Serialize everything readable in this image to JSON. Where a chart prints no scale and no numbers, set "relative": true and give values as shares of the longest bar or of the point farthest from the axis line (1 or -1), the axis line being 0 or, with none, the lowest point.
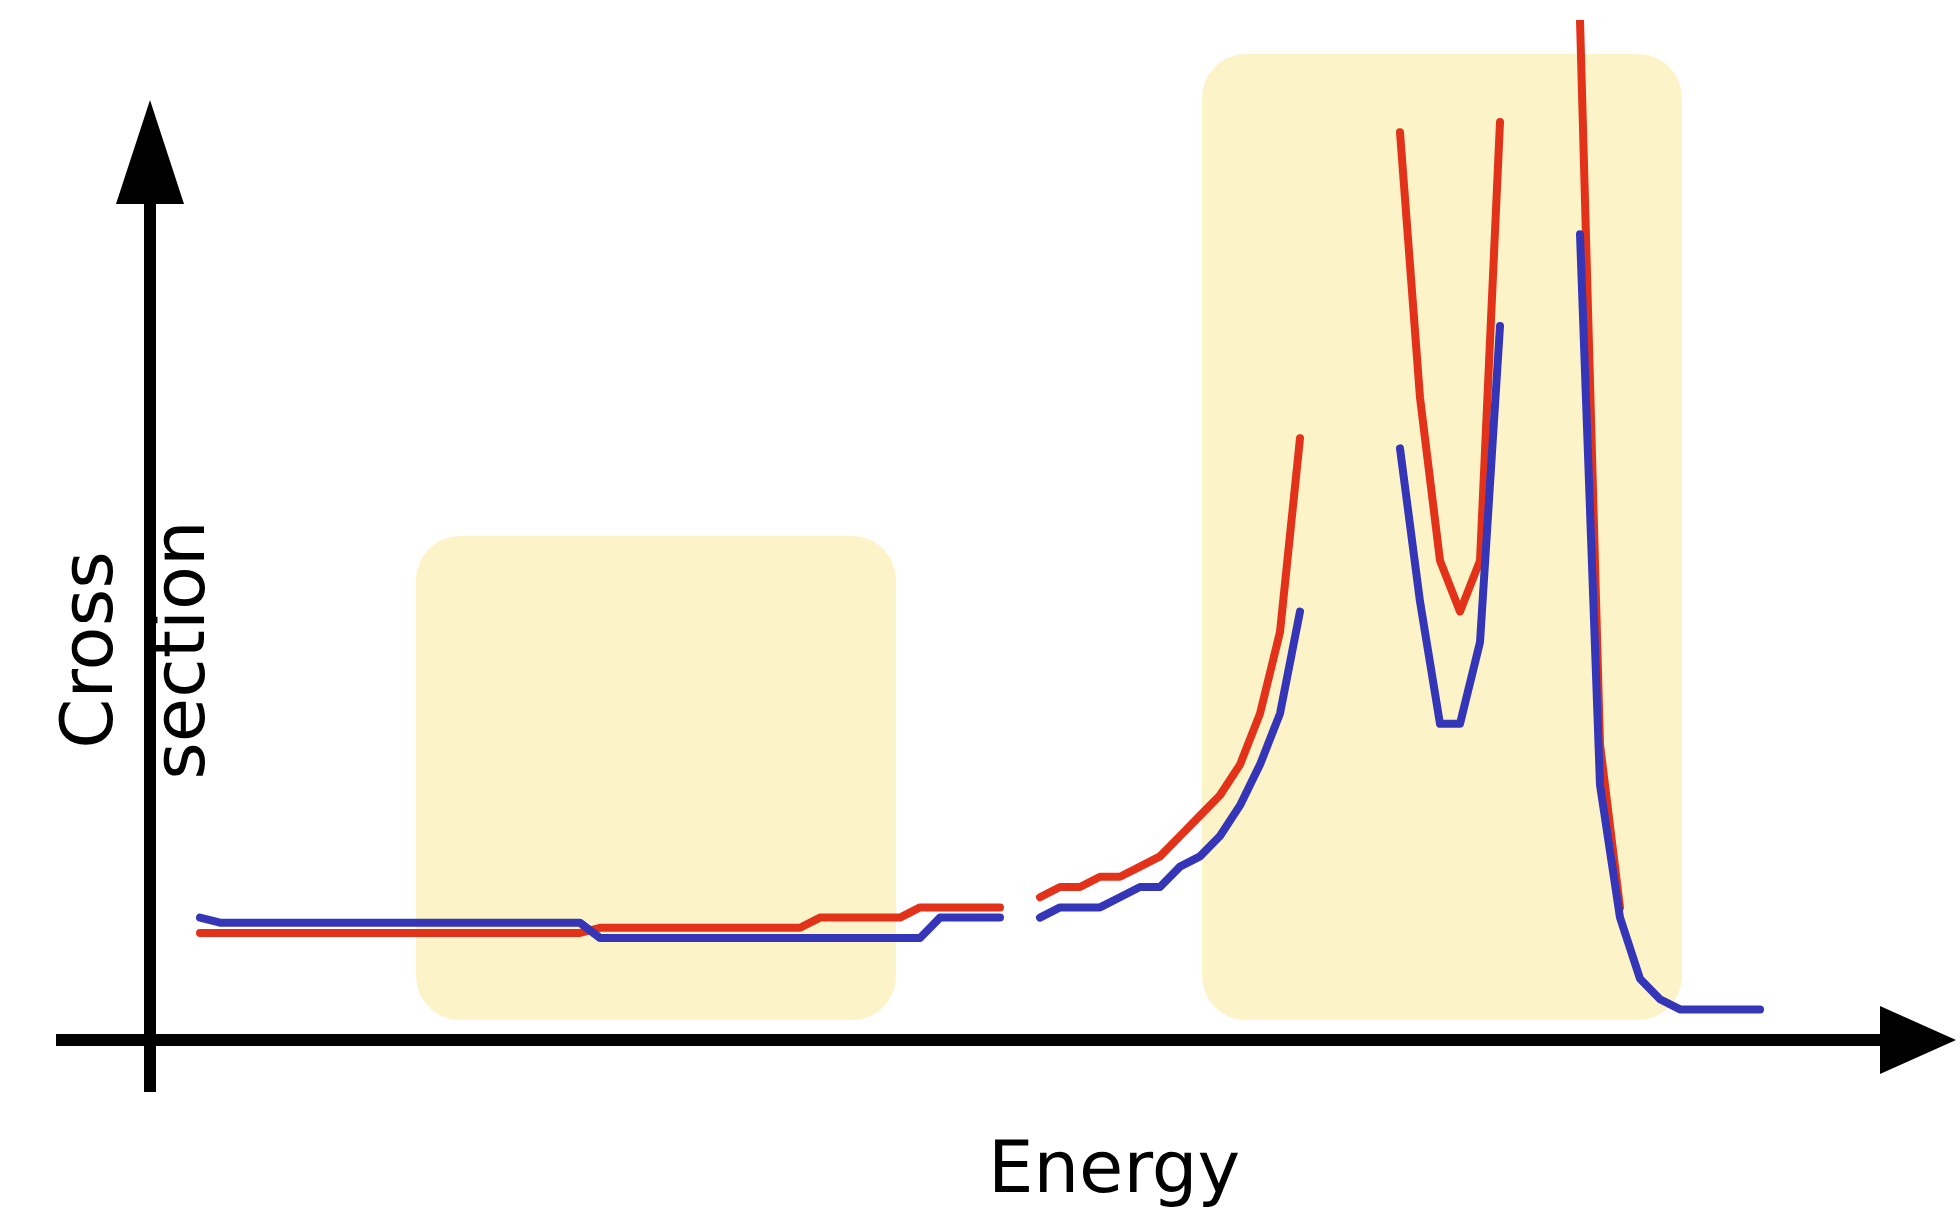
{
  "chart_data": {
    "type": "line",
    "xlabel": "Energy",
    "ylabel": "Cross section",
    "relative": true,
    "categories": [
      null,
      null,
      null,
      null,
      null,
      null,
      null,
      null,
      null,
      null,
      null,
      null,
      null,
      null,
      null,
      null,
      null,
      null,
      null,
      null,
      null,
      null,
      null,
      null,
      null,
      null,
      null,
      null,
      null,
      null,
      null,
      null,
      null,
      null,
      null,
      null,
      null,
      null,
      null,
      null,
      null,
      null,
      null,
      null,
      null,
      null,
      null,
      null,
      null,
      null,
      null,
      null,
      null,
      null,
      null,
      null,
      null,
      null,
      null,
      null,
      null,
      null,
      null,
      null,
      null,
      null,
      null,
      null,
      null,
      null,
      null,
      null,
      null,
      null,
      null,
      null,
      null,
      null,
      null
    ],
    "series": [
      {
        "color": "#3535b8",
        "values": [
          0.12,
          0.115,
          0.115,
          0.115,
          0.115,
          0.115,
          0.115,
          0.115,
          0.115,
          0.115,
          0.115,
          0.115,
          0.115,
          0.115,
          0.115,
          0.115,
          0.115,
          0.115,
          0.115,
          0.115,
          0.1,
          0.1,
          0.1,
          0.1,
          0.1,
          0.1,
          0.1,
          0.1,
          0.1,
          0.1,
          0.1,
          0.1,
          0.1,
          0.1,
          0.1,
          0.1,
          0.1,
          0.12,
          0.12,
          0.12,
          0.12,
          null,
          null,
          null,
          null,
          null,
          null,
          null,
          null,
          null,
          null,
          null,
          null,
          null,
          null,
          null,
          null,
          null,
          null,
          null,
          null,
          null,
          null,
          null,
          null,
          null,
          null,
          null,
          null,
          null,
          null,
          null,
          null,
          null,
          null,
          null,
          null,
          null,
          null
        ]
      },
      {
        "color": "#3535b8",
        "values": [
          null,
          null,
          null,
          null,
          null,
          null,
          null,
          null,
          null,
          null,
          null,
          null,
          null,
          null,
          null,
          null,
          null,
          null,
          null,
          null,
          null,
          null,
          null,
          null,
          null,
          null,
          null,
          null,
          null,
          null,
          null,
          null,
          null,
          null,
          null,
          null,
          null,
          null,
          null,
          null,
          null,
          null,
          0.12,
          0.13,
          0.13,
          0.13,
          0.14,
          0.15,
          0.15,
          0.17,
          0.18,
          0.2,
          0.23,
          0.27,
          0.32,
          0.42,
          null,
          null,
          null,
          null,
          null,
          null,
          null,
          null,
          null,
          null,
          null,
          null,
          null,
          null,
          null,
          null,
          null,
          null,
          null,
          null,
          null,
          null,
          null
        ]
      },
      {
        "color": "#3535b8",
        "values": [
          null,
          null,
          null,
          null,
          null,
          null,
          null,
          null,
          null,
          null,
          null,
          null,
          null,
          null,
          null,
          null,
          null,
          null,
          null,
          null,
          null,
          null,
          null,
          null,
          null,
          null,
          null,
          null,
          null,
          null,
          null,
          null,
          null,
          null,
          null,
          null,
          null,
          null,
          null,
          null,
          null,
          null,
          null,
          null,
          null,
          null,
          null,
          null,
          null,
          null,
          null,
          null,
          null,
          null,
          null,
          null,
          null,
          null,
          null,
          null,
          0.58,
          0.43,
          0.31,
          0.31,
          0.39,
          0.7,
          null,
          null,
          null,
          null,
          null,
          null,
          null,
          null,
          null,
          null,
          null,
          null,
          null
        ]
      },
      {
        "color": "#3535b8",
        "values": [
          null,
          null,
          null,
          null,
          null,
          null,
          null,
          null,
          null,
          null,
          null,
          null,
          null,
          null,
          null,
          null,
          null,
          null,
          null,
          null,
          null,
          null,
          null,
          null,
          null,
          null,
          null,
          null,
          null,
          null,
          null,
          null,
          null,
          null,
          null,
          null,
          null,
          null,
          null,
          null,
          null,
          null,
          null,
          null,
          null,
          null,
          null,
          null,
          null,
          null,
          null,
          null,
          null,
          null,
          null,
          null,
          null,
          null,
          null,
          null,
          null,
          null,
          null,
          null,
          null,
          null,
          null,
          null,
          null,
          0.79,
          0.25,
          0.12,
          0.06,
          0.04,
          0.03,
          0.03,
          0.03,
          0.03,
          0.03
        ]
      },
      {
        "color": "#e2331a",
        "values": [
          0.105,
          0.105,
          0.105,
          0.105,
          0.105,
          0.105,
          0.105,
          0.105,
          0.105,
          0.105,
          0.105,
          0.105,
          0.105,
          0.105,
          0.105,
          0.105,
          0.105,
          0.105,
          0.105,
          0.105,
          0.11,
          0.11,
          0.11,
          0.11,
          0.11,
          0.11,
          0.11,
          0.11,
          0.11,
          0.11,
          0.11,
          0.12,
          0.12,
          0.12,
          0.12,
          0.12,
          0.13,
          0.13,
          0.13,
          0.13,
          0.13,
          null,
          null,
          null,
          null,
          null,
          null,
          null,
          null,
          null,
          null,
          null,
          null,
          null,
          null,
          null,
          null,
          null,
          null,
          null,
          null,
          null,
          null,
          null,
          null,
          null,
          null,
          null,
          null,
          null,
          null,
          null,
          null,
          null,
          null,
          null,
          null,
          null,
          null
        ]
      },
      {
        "color": "#e2331a",
        "values": [
          null,
          null,
          null,
          null,
          null,
          null,
          null,
          null,
          null,
          null,
          null,
          null,
          null,
          null,
          null,
          null,
          null,
          null,
          null,
          null,
          null,
          null,
          null,
          null,
          null,
          null,
          null,
          null,
          null,
          null,
          null,
          null,
          null,
          null,
          null,
          null,
          null,
          null,
          null,
          null,
          null,
          null,
          0.14,
          0.15,
          0.15,
          0.16,
          0.16,
          0.17,
          0.18,
          0.2,
          0.22,
          0.24,
          0.27,
          0.32,
          0.4,
          0.59,
          null,
          null,
          null,
          null,
          null,
          null,
          null,
          null,
          null,
          null,
          null,
          null,
          null,
          null,
          null,
          null,
          null,
          null,
          null,
          null,
          null,
          null,
          null
        ]
      },
      {
        "color": "#e2331a",
        "values": [
          null,
          null,
          null,
          null,
          null,
          null,
          null,
          null,
          null,
          null,
          null,
          null,
          null,
          null,
          null,
          null,
          null,
          null,
          null,
          null,
          null,
          null,
          null,
          null,
          null,
          null,
          null,
          null,
          null,
          null,
          null,
          null,
          null,
          null,
          null,
          null,
          null,
          null,
          null,
          null,
          null,
          null,
          null,
          null,
          null,
          null,
          null,
          null,
          null,
          null,
          null,
          null,
          null,
          null,
          null,
          null,
          null,
          null,
          null,
          null,
          0.89,
          0.63,
          0.47,
          0.42,
          0.47,
          0.9,
          null,
          null,
          null,
          null,
          null,
          null,
          null,
          null,
          null,
          null,
          null,
          null,
          null
        ]
      },
      {
        "color": "#e2331a",
        "values": [
          null,
          null,
          null,
          null,
          null,
          null,
          null,
          null,
          null,
          null,
          null,
          null,
          null,
          null,
          null,
          null,
          null,
          null,
          null,
          null,
          null,
          null,
          null,
          null,
          null,
          null,
          null,
          null,
          null,
          null,
          null,
          null,
          null,
          null,
          null,
          null,
          null,
          null,
          null,
          null,
          null,
          null,
          null,
          null,
          null,
          null,
          null,
          null,
          null,
          null,
          null,
          null,
          null,
          null,
          null,
          null,
          null,
          null,
          null,
          null,
          null,
          null,
          null,
          null,
          null,
          null,
          null,
          null,
          null,
          1,
          0.29,
          0.13,
          null,
          null,
          null,
          null,
          null,
          null,
          null
        ]
      }
    ]
  }
}
